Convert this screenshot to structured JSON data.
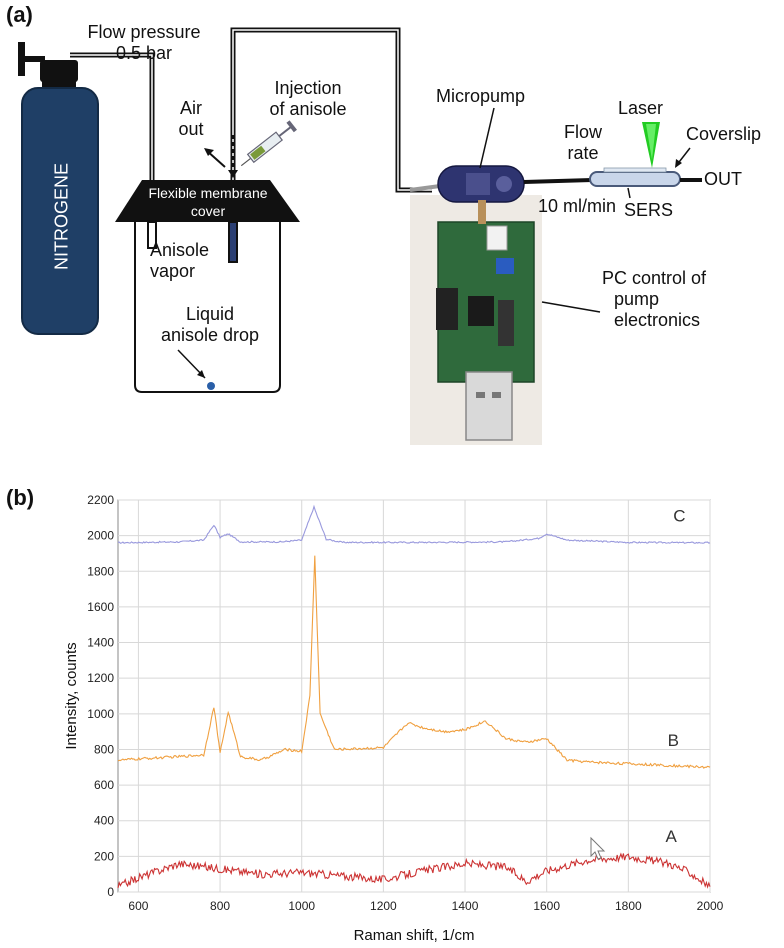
{
  "panel_a": {
    "panel_label": "(a)",
    "labels": {
      "flow_pressure_line1": "Flow pressure",
      "flow_pressure_line2": "0.5 bar",
      "nitrogen": "NITROGENE",
      "air_out_line1": "Air",
      "air_out_line2": "out",
      "injection_line1": "Injection",
      "injection_line2": "of anisole",
      "membrane_line1": "Flexible membrane",
      "membrane_line2": "cover",
      "vapor_line1": "Anisole",
      "vapor_line2": "vapor",
      "drop_line1": "Liquid",
      "drop_line2": "anisole drop",
      "micropump": "Micropump",
      "flow_rate_line1": "Flow",
      "flow_rate_line2": "rate",
      "flow_rate_value": "10 ml/min",
      "laser": "Laser",
      "coverslip": "Coverslip",
      "out": "OUT",
      "sers": "SERS",
      "pc_line1": "PC control of",
      "pc_line2": "pump",
      "pc_line3": "electronics"
    },
    "colors": {
      "cylinder": "#1f3f66",
      "laser": "#22cc22",
      "tubing": "#111111"
    }
  },
  "panel_b": {
    "panel_label": "(b)",
    "chart_data": {
      "type": "line",
      "xlabel": "Raman shift, 1/cm",
      "ylabel": "Intensity, counts",
      "xlim": [
        550,
        2000
      ],
      "ylim": [
        0,
        2200
      ],
      "xticks": [
        600,
        800,
        1000,
        1200,
        1400,
        1600,
        1800,
        2000
      ],
      "yticks": [
        0,
        200,
        400,
        600,
        800,
        1000,
        1200,
        1400,
        1600,
        1800,
        2000,
        2200
      ],
      "grid": true,
      "series": [
        {
          "name": "C",
          "color": "#9999dd",
          "x": [
            550,
            700,
            760,
            785,
            800,
            820,
            850,
            950,
            1000,
            1030,
            1060,
            1100,
            1300,
            1500,
            1580,
            1600,
            1650,
            1800,
            2000
          ],
          "y": [
            1960,
            1965,
            1975,
            2060,
            1990,
            2010,
            1965,
            1965,
            1975,
            2160,
            1980,
            1962,
            1962,
            1965,
            1985,
            2010,
            1975,
            1962,
            1960
          ]
        },
        {
          "name": "B",
          "color": "#f0a040",
          "x": [
            550,
            700,
            760,
            785,
            800,
            820,
            850,
            900,
            960,
            1000,
            1020,
            1032,
            1045,
            1080,
            1200,
            1260,
            1300,
            1350,
            1400,
            1450,
            1500,
            1550,
            1600,
            1650,
            1700,
            1800,
            1900,
            2000
          ],
          "y": [
            740,
            760,
            770,
            1040,
            780,
            1010,
            760,
            740,
            800,
            790,
            1100,
            1890,
            1000,
            800,
            810,
            950,
            920,
            900,
            910,
            960,
            860,
            840,
            860,
            740,
            730,
            720,
            710,
            700
          ]
        },
        {
          "name": "A",
          "color": "#cc3333",
          "x": [
            550,
            600,
            700,
            800,
            900,
            1000,
            1100,
            1200,
            1300,
            1400,
            1500,
            1550,
            1600,
            1700,
            1800,
            1900,
            1950,
            2000
          ],
          "y": [
            30,
            80,
            160,
            130,
            100,
            110,
            90,
            70,
            120,
            160,
            140,
            60,
            120,
            180,
            200,
            160,
            110,
            30
          ]
        }
      ],
      "annotations": [
        "C",
        "B",
        "A"
      ]
    }
  }
}
